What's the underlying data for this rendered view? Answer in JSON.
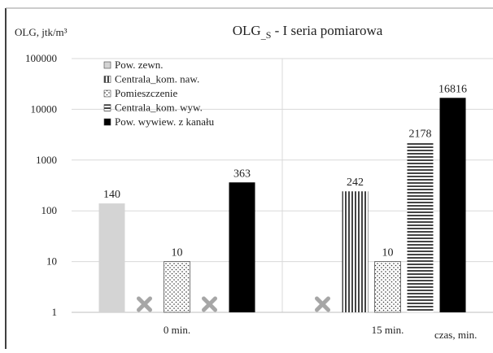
{
  "chart_data": {
    "type": "bar",
    "title": "OLG_S - I seria pomiarowa",
    "ylabel": "OLG, jtk/m³",
    "xlabel": "czas, min.",
    "y_scale": "log",
    "ylim": [
      1,
      100000
    ],
    "y_ticks": [
      "1",
      "10",
      "100",
      "1000",
      "10000",
      "100000"
    ],
    "grid": "horizontal",
    "legend_position": "top-left",
    "categories": [
      "0 min.",
      "15 min."
    ],
    "series": [
      {
        "name": "Pow. zewn.",
        "fill": "solid-light-gray",
        "values": [
          140,
          null
        ]
      },
      {
        "name": "Centrala_kom. naw.",
        "fill": "vertical-stripes",
        "values": [
          null,
          242
        ]
      },
      {
        "name": "Pomieszczenie",
        "fill": "dots",
        "values": [
          10,
          10
        ]
      },
      {
        "name": "Centrala_kom. wyw.",
        "fill": "horizontal-stripes",
        "values": [
          null,
          2178
        ]
      },
      {
        "name": "Pow. wywiew. z kanału",
        "fill": "solid-black",
        "values": [
          363,
          16816
        ]
      }
    ],
    "data_labels": [
      [
        "140",
        null,
        "10",
        null,
        "363"
      ],
      [
        null,
        "242",
        "10",
        "2178",
        "16816"
      ]
    ],
    "missing_markers": [
      [
        false,
        true,
        false,
        true,
        false
      ],
      [
        true,
        false,
        false,
        false,
        false
      ]
    ],
    "colors": {
      "light": "#d4d4d4",
      "dark": "#000000",
      "grid": "#d9d9d9",
      "axis": "#bfbfbf",
      "marker": "#a6a6a6"
    }
  }
}
